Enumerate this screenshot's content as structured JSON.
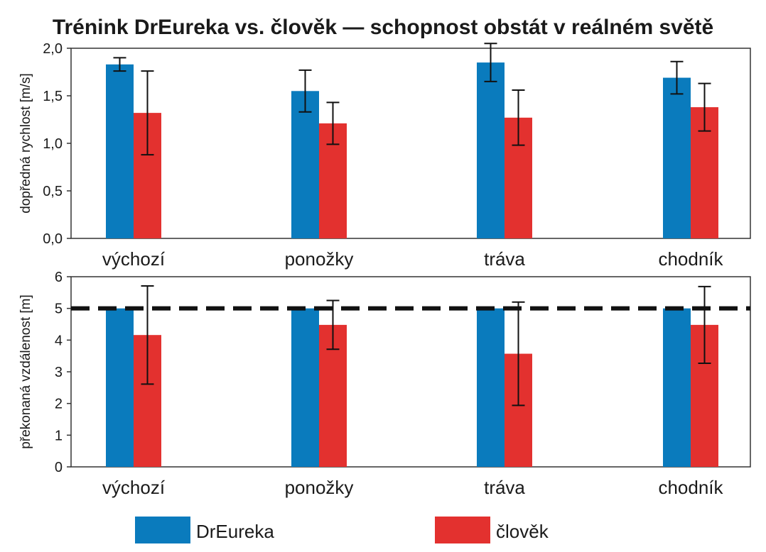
{
  "title": "Trénink DrEureka vs. člověk — schopnost obstát v reálném světě",
  "colors": {
    "DrEureka": "#0a7bbd",
    "clovek": "#e3312f",
    "reference": "#111111"
  },
  "legend": [
    "DrEureka",
    "člověk"
  ],
  "chart_data": [
    {
      "type": "bar",
      "categories": [
        "výchozí",
        "ponožky",
        "tráva",
        "chodník"
      ],
      "ylabel": "dopředná rychlost [m/s]",
      "ylim": [
        0,
        2.0
      ],
      "yticks": [
        "0,0",
        "0,5",
        "1,0",
        "1,5",
        "2,0"
      ],
      "ytick_values": [
        0,
        0.5,
        1.0,
        1.5,
        2.0
      ],
      "series": [
        {
          "name": "DrEureka",
          "values": [
            1.83,
            1.55,
            1.85,
            1.69
          ],
          "errors": [
            0.07,
            0.22,
            0.2,
            0.17
          ]
        },
        {
          "name": "člověk",
          "values": [
            1.32,
            1.21,
            1.27,
            1.38
          ],
          "errors": [
            0.44,
            0.22,
            0.29,
            0.25
          ]
        }
      ]
    },
    {
      "type": "bar",
      "categories": [
        "výchozí",
        "ponožky",
        "tráva",
        "chodník"
      ],
      "ylabel": "překonaná vzdálenost [m]",
      "ylim": [
        0,
        6
      ],
      "yticks": [
        "0",
        "1",
        "2",
        "3",
        "4",
        "5",
        "6"
      ],
      "ytick_values": [
        0,
        1,
        2,
        3,
        4,
        5,
        6
      ],
      "reference_line": 5,
      "series": [
        {
          "name": "DrEureka",
          "values": [
            5,
            5,
            5,
            5
          ],
          "errors": [
            0,
            0,
            0,
            0
          ]
        },
        {
          "name": "člověk",
          "values": [
            4.16,
            4.48,
            3.57,
            4.48
          ],
          "errors": [
            1.55,
            0.77,
            1.63,
            1.21
          ]
        }
      ]
    }
  ]
}
